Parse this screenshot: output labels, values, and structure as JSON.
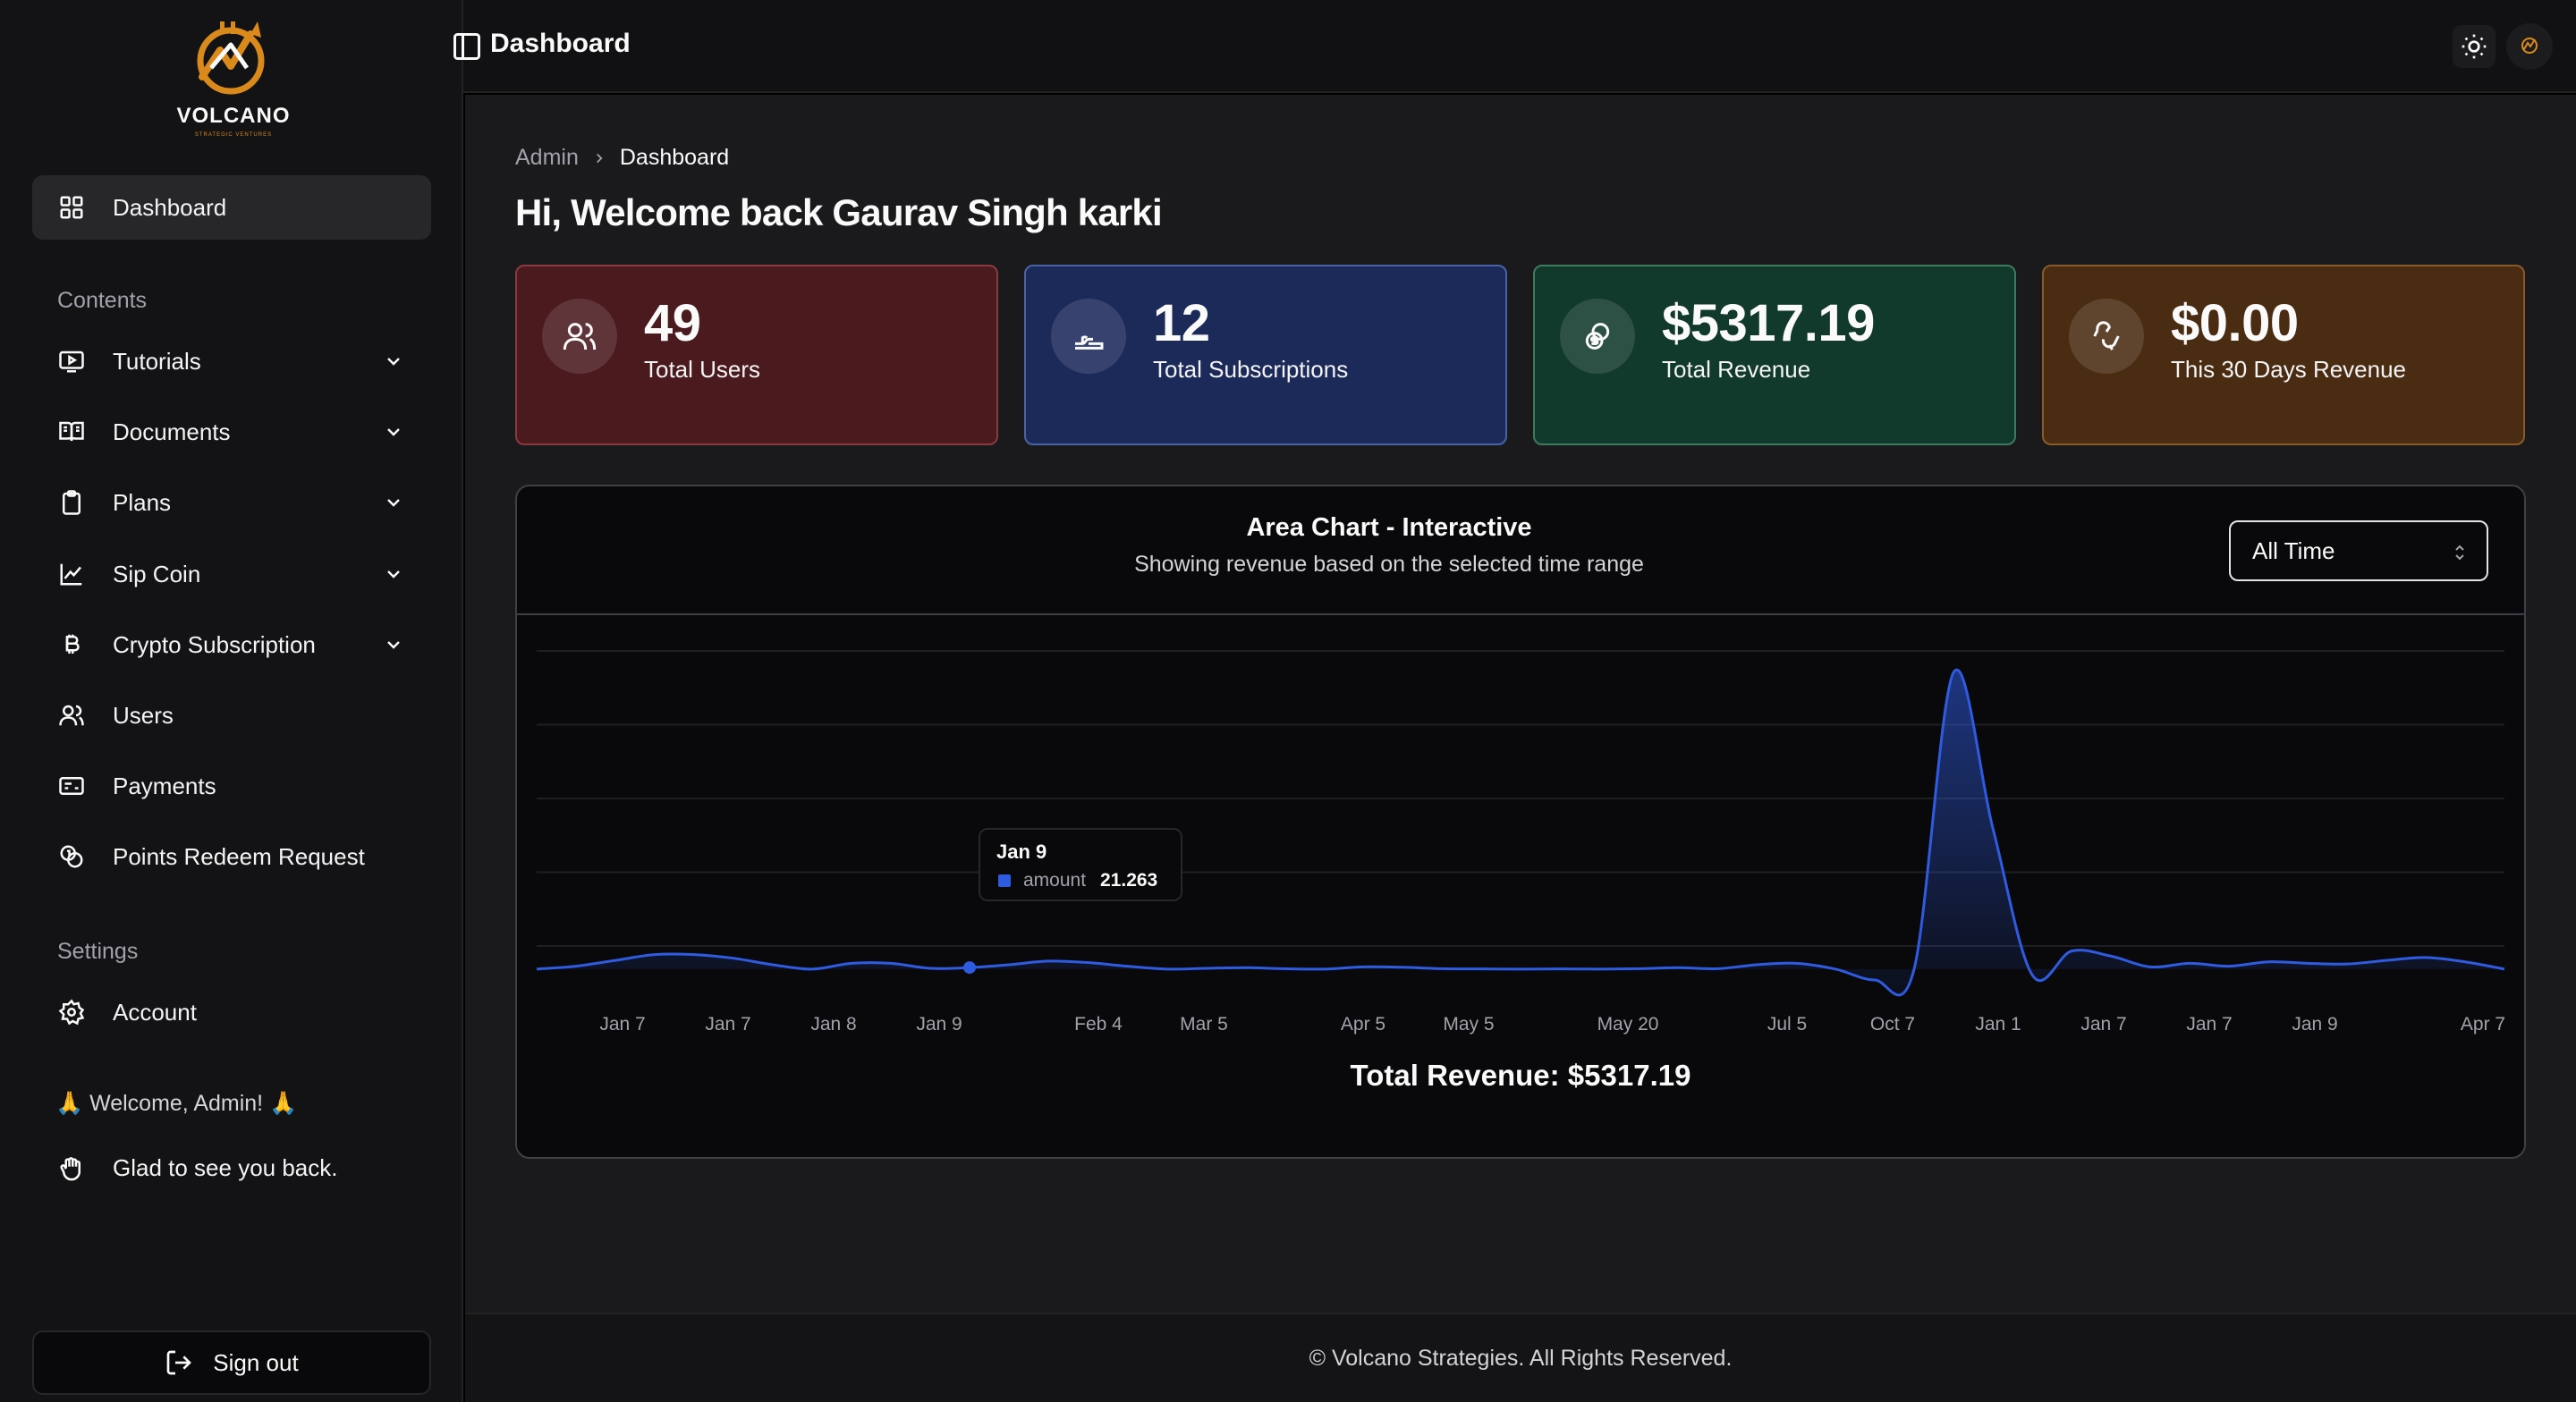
{
  "brand": {
    "name": "VOLCANO",
    "tagline": "STRATEGIC VENTURES",
    "accent": "#d98a1a"
  },
  "sidebar": {
    "active_item": {
      "label": "Dashboard",
      "icon": "grid-icon"
    },
    "groups": [
      {
        "label": "Contents"
      },
      {
        "label": "Settings"
      }
    ],
    "contents": [
      {
        "label": "Tutorials",
        "icon": "video-icon",
        "expandable": true
      },
      {
        "label": "Documents",
        "icon": "book-icon",
        "expandable": true
      },
      {
        "label": "Plans",
        "icon": "clipboard-icon",
        "expandable": true
      },
      {
        "label": "Sip Coin",
        "icon": "line-chart-icon",
        "expandable": true
      },
      {
        "label": "Crypto Subscription",
        "icon": "bitcoin-icon",
        "expandable": true
      },
      {
        "label": "Users",
        "icon": "users-icon",
        "expandable": false
      },
      {
        "label": "Payments",
        "icon": "card-icon",
        "expandable": false
      },
      {
        "label": "Points Redeem Request",
        "icon": "coins-icon",
        "expandable": false
      }
    ],
    "settings": [
      {
        "label": "Account",
        "icon": "gear-icon"
      }
    ],
    "welcome": "🙏 Welcome, Admin! 🙏",
    "glad": "Glad to see you back.",
    "signout": "Sign out"
  },
  "topbar": {
    "title": "Dashboard"
  },
  "breadcrumb": {
    "root": "Admin",
    "current": "Dashboard"
  },
  "greeting": "Hi, Welcome back Gaurav Singh karki",
  "stats": [
    {
      "value": "49",
      "label": "Total Users",
      "icon": "users-icon",
      "bg": "#4a1a1e",
      "border": "#8a3a3e"
    },
    {
      "value": "12",
      "label": "Total Subscriptions",
      "icon": "hand-coins-icon",
      "bg": "#1c2a5a",
      "border": "#4a62a8"
    },
    {
      "value": "$5317.19",
      "label": "Total Revenue",
      "icon": "dollar-coin-icon",
      "bg": "#123a2c",
      "border": "#3e7a5e"
    },
    {
      "value": "$0.00",
      "label": "This 30 Days Revenue",
      "icon": "wallet-icon",
      "bg": "#4a2c12",
      "border": "#8a5a2a"
    }
  ],
  "chart_card": {
    "title": "Area Chart - Interactive",
    "subtitle": "Showing revenue based on the selected time range",
    "range_select": "All Time",
    "total_label": "Total Revenue: $5317.19"
  },
  "tooltip": {
    "date": "Jan 9",
    "key": "amount",
    "value": "21.263"
  },
  "chart_data": {
    "type": "area",
    "x_ticks": [
      "Jan 7",
      "Jan 7",
      "Jan 8",
      "Jan 9",
      "Feb 4",
      "Mar 5",
      "Apr 5",
      "May 5",
      "May 20",
      "Jul 5",
      "Oct 7",
      "Jan 1",
      "Jan 7",
      "Jan 7",
      "Jan 9",
      "Apr 7"
    ],
    "series": [
      {
        "name": "amount",
        "color": "#2f5be0",
        "values": [
          0,
          40,
          120,
          200,
          200,
          150,
          60,
          0,
          80,
          80,
          10,
          21.263,
          60,
          110,
          90,
          40,
          0,
          10,
          20,
          5,
          0,
          30,
          25,
          5,
          2,
          0,
          2,
          0,
          5,
          20,
          5,
          60,
          80,
          0,
          -150,
          0,
          4100,
          1950,
          -80,
          250,
          180,
          30,
          80,
          40,
          100,
          80,
          70,
          120,
          160,
          100,
          0
        ]
      }
    ],
    "highlight": {
      "x": "Jan 9",
      "value": 21.263
    },
    "ylim": [
      -200,
      4400
    ],
    "grid": "horizontal",
    "legend": "none"
  },
  "footer": "© Volcano Strategies. All Rights Reserved."
}
